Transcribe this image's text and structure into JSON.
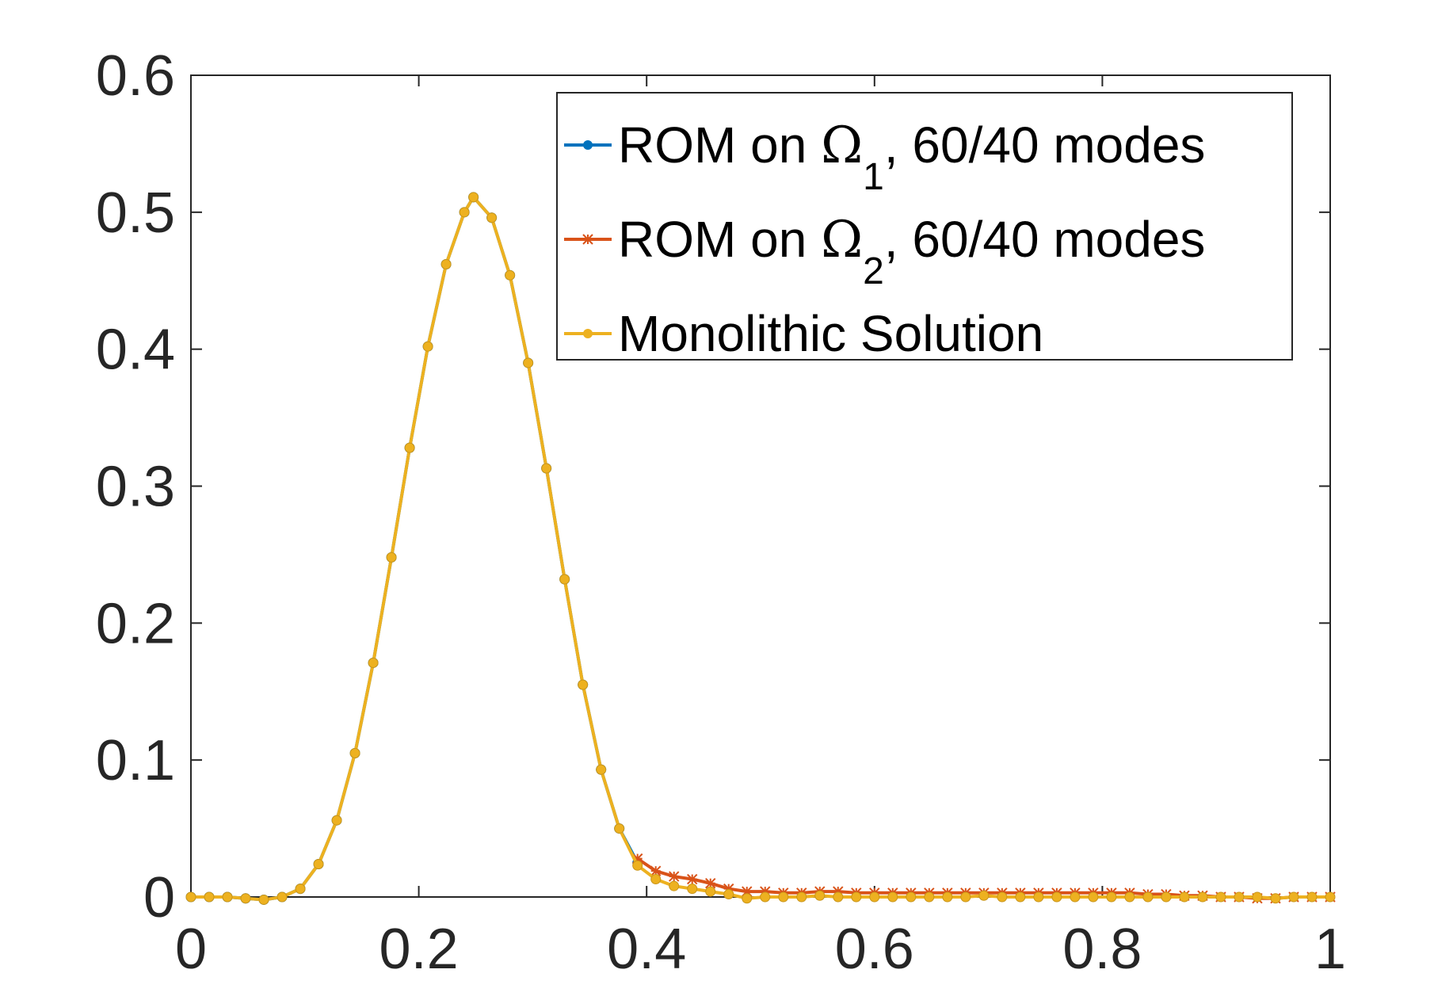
{
  "chart_data": {
    "type": "line",
    "title": "",
    "xlabel": "",
    "ylabel": "",
    "xlim": [
      0,
      1
    ],
    "ylim": [
      0,
      0.6
    ],
    "xticks": [
      "0",
      "0.2",
      "0.4",
      "0.6",
      "0.8",
      "1"
    ],
    "yticks": [
      "0",
      "0.1",
      "0.2",
      "0.3",
      "0.4",
      "0.5",
      "0.6"
    ],
    "grid": false,
    "legend_position": "top-right",
    "legend": [
      {
        "prefix": "ROM on ",
        "symbol": "Ω",
        "subscript": "1",
        "suffix": ", 60/40 modes"
      },
      {
        "prefix": "ROM on ",
        "symbol": "Ω",
        "subscript": "2",
        "suffix": ", 60/40 modes"
      },
      {
        "prefix": "",
        "symbol": "",
        "subscript": "",
        "suffix": "Monolithic Solution"
      }
    ],
    "series": [
      {
        "name": "ROM on Ω1, 60/40 modes",
        "color": "#0072BD",
        "marker": "dot",
        "x": [
          0.0,
          0.016,
          0.032,
          0.048,
          0.064,
          0.08,
          0.096,
          0.112,
          0.128,
          0.144,
          0.16,
          0.176,
          0.192,
          0.208,
          0.224,
          0.24,
          0.248,
          0.264,
          0.28,
          0.296,
          0.312,
          0.328,
          0.344,
          0.36,
          0.376,
          0.392
        ],
        "y": [
          0.0,
          0.0,
          0.0,
          -0.001,
          -0.002,
          0.0,
          0.006,
          0.024,
          0.056,
          0.105,
          0.171,
          0.248,
          0.328,
          0.402,
          0.462,
          0.5,
          0.511,
          0.496,
          0.454,
          0.39,
          0.313,
          0.232,
          0.155,
          0.093,
          0.05,
          0.025
        ]
      },
      {
        "name": "ROM on Ω2, 60/40 modes",
        "color": "#D95319",
        "marker": "star",
        "x": [
          0.392,
          0.408,
          0.424,
          0.44,
          0.456,
          0.472,
          0.488,
          0.504,
          0.52,
          0.536,
          0.552,
          0.568,
          0.584,
          0.6,
          0.616,
          0.632,
          0.648,
          0.664,
          0.68,
          0.696,
          0.712,
          0.728,
          0.744,
          0.76,
          0.776,
          0.792,
          0.808,
          0.824,
          0.84,
          0.856,
          0.872,
          0.888,
          0.904,
          0.92,
          0.936,
          0.952,
          0.968,
          0.984,
          1.0
        ],
        "y": [
          0.028,
          0.019,
          0.015,
          0.013,
          0.01,
          0.006,
          0.004,
          0.004,
          0.003,
          0.003,
          0.004,
          0.004,
          0.003,
          0.003,
          0.003,
          0.003,
          0.003,
          0.003,
          0.003,
          0.003,
          0.003,
          0.003,
          0.003,
          0.003,
          0.003,
          0.003,
          0.003,
          0.003,
          0.002,
          0.002,
          0.001,
          0.001,
          0.0,
          0.0,
          -0.001,
          -0.001,
          0.0,
          0.0,
          0.0
        ]
      },
      {
        "name": "Monolithic Solution",
        "color": "#EDB120",
        "marker": "dot",
        "x": [
          0.0,
          0.016,
          0.032,
          0.048,
          0.064,
          0.08,
          0.096,
          0.112,
          0.128,
          0.144,
          0.16,
          0.176,
          0.192,
          0.208,
          0.224,
          0.24,
          0.248,
          0.264,
          0.28,
          0.296,
          0.312,
          0.328,
          0.344,
          0.36,
          0.376,
          0.392,
          0.408,
          0.424,
          0.44,
          0.456,
          0.472,
          0.488,
          0.504,
          0.52,
          0.536,
          0.552,
          0.568,
          0.584,
          0.6,
          0.616,
          0.632,
          0.648,
          0.664,
          0.68,
          0.696,
          0.712,
          0.728,
          0.744,
          0.76,
          0.776,
          0.792,
          0.808,
          0.824,
          0.84,
          0.856,
          0.872,
          0.888,
          0.904,
          0.92,
          0.936,
          0.952,
          0.968,
          0.984,
          1.0
        ],
        "y": [
          0.0,
          0.0,
          0.0,
          -0.001,
          -0.002,
          0.0,
          0.006,
          0.024,
          0.056,
          0.105,
          0.171,
          0.248,
          0.328,
          0.402,
          0.462,
          0.5,
          0.511,
          0.496,
          0.454,
          0.39,
          0.313,
          0.232,
          0.155,
          0.093,
          0.05,
          0.023,
          0.013,
          0.008,
          0.006,
          0.004,
          0.002,
          -0.001,
          0.0,
          0.0,
          0.0,
          0.001,
          0.0,
          0.0,
          0.0,
          0.0,
          0.0,
          0.0,
          0.0,
          0.0,
          0.001,
          0.0,
          0.0,
          0.0,
          0.0,
          0.0,
          0.0,
          0.0,
          0.0,
          0.0,
          0.0,
          0.0,
          0.0,
          0.0,
          0.0,
          0.0,
          -0.001,
          0.0,
          0.0,
          0.0
        ]
      }
    ]
  }
}
